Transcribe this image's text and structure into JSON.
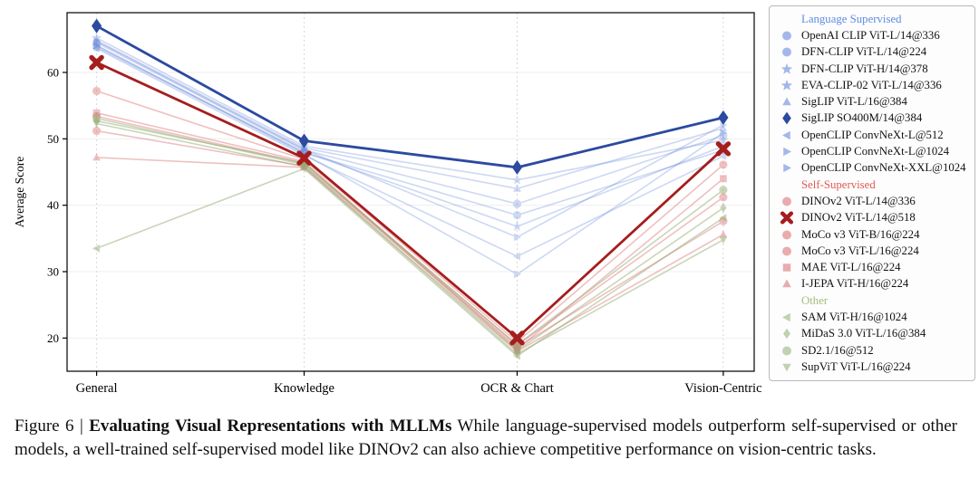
{
  "caption": {
    "prefix": "Figure 6 | ",
    "title": "Evaluating Visual Representations with MLLMs",
    "body": " While language-supervised models outperform self-supervised or other models, a well-trained self-supervised model like DINOv2 can also achieve competitive performance on vision-centric tasks."
  },
  "chart_data": {
    "type": "line",
    "title": "",
    "xlabel": "",
    "ylabel": "Average Score",
    "categories": [
      "General",
      "Knowledge",
      "OCR & Chart",
      "Vision-Centric"
    ],
    "ylim": [
      15,
      69
    ],
    "yticks": [
      20,
      30,
      40,
      50,
      60
    ],
    "grid": true,
    "legend_position": "right",
    "groups": [
      {
        "name": "Language Supervised",
        "color": "#5d8ce0"
      },
      {
        "name": "Self-Supervised",
        "color": "#e05a50"
      },
      {
        "name": "Other",
        "color": "#a3bd7e"
      }
    ],
    "series": [
      {
        "name": "OpenAI CLIP ViT-L/14@336",
        "group": "Language Supervised",
        "marker": "circle",
        "color": "#5b7fd6",
        "alpha": 0.3,
        "highlight": false,
        "values": [
          64.5,
          48.3,
          40.2,
          50.5
        ]
      },
      {
        "name": "DFN-CLIP ViT-L/14@224",
        "group": "Language Supervised",
        "marker": "circle",
        "color": "#5b7fd6",
        "alpha": 0.3,
        "highlight": false,
        "values": [
          63.8,
          47.9,
          38.5,
          48.3
        ]
      },
      {
        "name": "DFN-CLIP ViT-H/14@378",
        "group": "Language Supervised",
        "marker": "star",
        "color": "#5b7fd6",
        "alpha": 0.3,
        "highlight": false,
        "values": [
          65.2,
          48.9,
          43.8,
          49.8
        ]
      },
      {
        "name": "EVA-CLIP-02 ViT-L/14@336",
        "group": "Language Supervised",
        "marker": "star",
        "color": "#5b7fd6",
        "alpha": 0.3,
        "highlight": false,
        "values": [
          64.0,
          48.0,
          36.8,
          48.9
        ]
      },
      {
        "name": "SigLIP ViT-L/16@384",
        "group": "Language Supervised",
        "marker": "triangle-up",
        "color": "#5b7fd6",
        "alpha": 0.3,
        "highlight": false,
        "values": [
          64.8,
          48.6,
          42.5,
          51.6
        ]
      },
      {
        "name": "SigLIP SO400M/14@384",
        "group": "Language Supervised",
        "marker": "diamond",
        "color": "#2b4aa0",
        "alpha": 1,
        "highlight": true,
        "values": [
          67.0,
          49.7,
          45.7,
          53.2
        ]
      },
      {
        "name": "OpenCLIP ConvNeXt-L@512",
        "group": "Language Supervised",
        "marker": "triangle-left",
        "color": "#5b7fd6",
        "alpha": 0.3,
        "highlight": false,
        "values": [
          63.6,
          47.5,
          32.3,
          47.4
        ]
      },
      {
        "name": "OpenCLIP ConvNeXt-L@1024",
        "group": "Language Supervised",
        "marker": "triangle-right",
        "color": "#5b7fd6",
        "alpha": 0.3,
        "highlight": false,
        "values": [
          64.1,
          47.7,
          29.6,
          50.9
        ]
      },
      {
        "name": "OpenCLIP ConvNeXt-XXL@1024",
        "group": "Language Supervised",
        "marker": "triangle-right",
        "color": "#5b7fd6",
        "alpha": 0.3,
        "highlight": false,
        "values": [
          64.7,
          48.4,
          35.2,
          52.1
        ]
      },
      {
        "name": "DINOv2 ViT-L/14@336",
        "group": "Self-Supervised",
        "marker": "circle",
        "color": "#d96a6a",
        "alpha": 0.42,
        "highlight": false,
        "values": [
          57.2,
          46.9,
          19.4,
          46.1
        ]
      },
      {
        "name": "DINOv2 ViT-L/14@518",
        "group": "Self-Supervised",
        "marker": "x",
        "color": "#a51d1d",
        "alpha": 1,
        "highlight": true,
        "values": [
          61.5,
          47.1,
          20.0,
          48.5
        ]
      },
      {
        "name": "MoCo v3 ViT-B/16@224",
        "group": "Self-Supervised",
        "marker": "circle",
        "color": "#d96a6a",
        "alpha": 0.42,
        "highlight": false,
        "values": [
          51.2,
          45.9,
          18.6,
          37.6
        ]
      },
      {
        "name": "MoCo v3 ViT-L/16@224",
        "group": "Self-Supervised",
        "marker": "circle",
        "color": "#d96a6a",
        "alpha": 0.42,
        "highlight": false,
        "values": [
          53.4,
          46.3,
          18.9,
          41.2
        ]
      },
      {
        "name": "MAE ViT-L/16@224",
        "group": "Self-Supervised",
        "marker": "square",
        "color": "#d96a6a",
        "alpha": 0.42,
        "highlight": false,
        "values": [
          53.9,
          46.6,
          18.3,
          44.0
        ]
      },
      {
        "name": "I-JEPA ViT-H/16@224",
        "group": "Self-Supervised",
        "marker": "triangle-up",
        "color": "#d96a6a",
        "alpha": 0.42,
        "highlight": false,
        "values": [
          47.2,
          45.7,
          18.0,
          35.6
        ]
      },
      {
        "name": "SAM ViT-H/16@1024",
        "group": "Other",
        "marker": "triangle-left",
        "color": "#93ad74",
        "alpha": 0.5,
        "highlight": false,
        "values": [
          33.5,
          45.5,
          17.3,
          38.1
        ]
      },
      {
        "name": "MiDaS 3.0 ViT-L/16@384",
        "group": "Other",
        "marker": "diamond",
        "color": "#93ad74",
        "alpha": 0.5,
        "highlight": false,
        "values": [
          52.7,
          46.4,
          18.1,
          39.6
        ]
      },
      {
        "name": "SD2.1/16@512",
        "group": "Other",
        "marker": "circle",
        "color": "#93ad74",
        "alpha": 0.5,
        "highlight": false,
        "values": [
          53.1,
          46.1,
          19.0,
          42.3
        ]
      },
      {
        "name": "SupViT ViT-L/16@224",
        "group": "Other",
        "marker": "triangle-down",
        "color": "#93ad74",
        "alpha": 0.5,
        "highlight": false,
        "values": [
          52.3,
          45.8,
          17.6,
          34.8
        ]
      }
    ]
  }
}
